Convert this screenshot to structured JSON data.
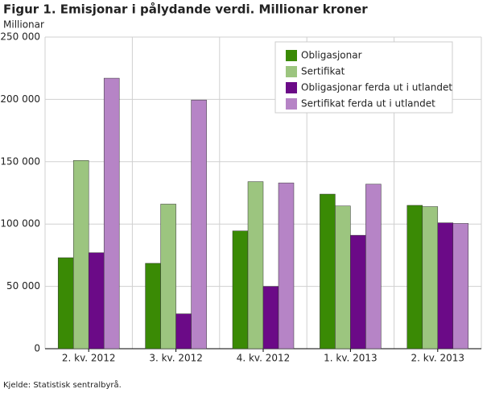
{
  "chart_data": {
    "type": "bar",
    "title": "Figur 1. Emisjonar i pålydande verdi. Millionar kroner",
    "y_label": "Millionar",
    "source": "Kjelde: Statistisk sentralbyrå.",
    "categories": [
      "2. kv. 2012",
      "3. kv. 2012",
      "4. kv. 2012",
      "1. kv. 2013",
      "2. kv. 2013"
    ],
    "series": [
      {
        "name": "Obligasjonar",
        "color": "#3a8a05",
        "values": [
          73000,
          68500,
          94500,
          124000,
          115000
        ]
      },
      {
        "name": "Sertifikat",
        "color": "#9cc57f",
        "values": [
          151000,
          116000,
          134000,
          114500,
          114000
        ]
      },
      {
        "name": "Obligasjonar ferda ut i utlandet",
        "color": "#6b0a87",
        "values": [
          77000,
          28000,
          50000,
          91000,
          101000
        ]
      },
      {
        "name": "Sertifikat ferda ut i utlandet",
        "color": "#b684c6",
        "values": [
          217000,
          199500,
          133000,
          132000,
          100500
        ]
      }
    ],
    "ylim": [
      0,
      250000
    ],
    "yticks": [
      0,
      {
        "value": 50000,
        "label": "50 000"
      },
      {
        "value": 100000,
        "label": "100 000"
      },
      {
        "value": 150000,
        "label": "150 000"
      },
      {
        "value": 200000,
        "label": "200 000"
      },
      {
        "value": 250000,
        "label": "250 000"
      }
    ],
    "grid": true,
    "legend": "top-right"
  }
}
